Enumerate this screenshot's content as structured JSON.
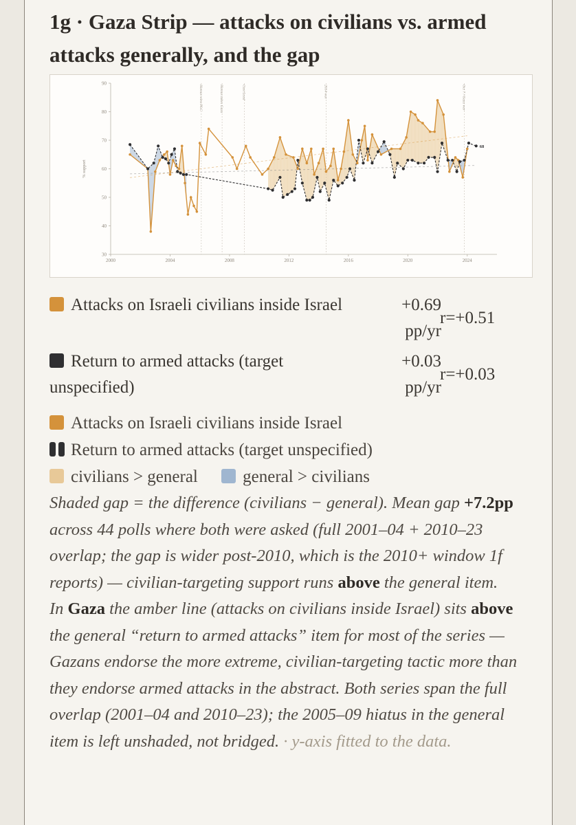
{
  "title": "1g · Gaza Strip — attacks on civilians vs. armed attacks generally, and the gap",
  "colors": {
    "civilians": "#d4923b",
    "general": "#2f2f31",
    "gap_civ_gt_gen": "#e8c998",
    "gap_gen_gt_civ": "#9fb6d0"
  },
  "stats": [
    {
      "label": "Attacks on Israeli civilians inside Israel",
      "slope": "+0.69",
      "unit": "pp/yr",
      "r": "r=+0.51",
      "color_key": "civilians"
    },
    {
      "label": "Return to armed attacks (target unspecified)",
      "slope": "+0.03",
      "unit": "pp/yr",
      "r": "r=+0.03",
      "color_key": "general"
    }
  ],
  "legend": {
    "series1": "Attacks on Israeli civilians inside Israel",
    "series2": "Return to armed attacks (target unspecified)",
    "gap_pos": "civilians > general",
    "gap_neg": "general > civilians"
  },
  "note": {
    "p1_a": "Shaded gap = the difference (civilians − general). Mean gap ",
    "p1_b": "+7.2pp",
    "p1_c": " across 44 polls where both were asked (full 2001–04 + 2010–23 overlap; the gap is wider post-2010, which is the 2010+ window 1f reports) — civilian-targeting support runs ",
    "p1_d": "above",
    "p1_e": " the general item.",
    "p2_a": "In ",
    "p2_b": "Gaza",
    "p2_c": " the amber line (attacks on civilians inside Israel) sits ",
    "p2_d": "above",
    "p2_e": " the general “return to armed attacks” item for most of the series — Gazans endorse the more extreme, civilian-targeting tactic more than they endorse armed attacks in the abstract. Both series span the full overlap (2001–04 and 2010–23); the 2005–09 hiatus in the general item is left unshaded, not bridged.",
    "p2_f": " · y-axis fitted to the data."
  },
  "chart_data": {
    "type": "line",
    "xlim": [
      2000,
      2026
    ],
    "ylim": [
      30,
      90
    ],
    "x_ticks": [
      "2000",
      "2004",
      "2008",
      "2012",
      "2016",
      "2020",
      "2024"
    ],
    "y_ticks": [
      "30",
      "40",
      "50",
      "60",
      "70",
      "80",
      "90"
    ],
    "ylabel": "% support",
    "end_label": "68",
    "annotations": [
      {
        "x": 2006.1,
        "label": "Hamas wins PLC"
      },
      {
        "x": 2007.5,
        "label": "Hamas takes Gaza"
      },
      {
        "x": 2009.0,
        "label": "Cast Lead"
      },
      {
        "x": 2014.5,
        "label": "2014 war"
      },
      {
        "x": 2023.8,
        "label": "Oct 7 / Gaza war"
      }
    ],
    "series": [
      {
        "name": "Attacks on Israeli civilians inside Israel",
        "x": [
          2001.3,
          2002.5,
          2002.7,
          2003.0,
          2003.3,
          2003.6,
          2003.8,
          2004.0,
          2004.2,
          2004.4,
          2004.6,
          2004.8,
          2005.0,
          2005.2,
          2005.4,
          2005.6,
          2005.8,
          2006.0,
          2006.4,
          2006.6,
          2008.2,
          2008.5,
          2009.1,
          2009.4,
          2010.2,
          2010.6,
          2011.0,
          2011.4,
          2011.8,
          2012.3,
          2012.6,
          2012.9,
          2013.2,
          2013.5,
          2013.7,
          2014.0,
          2014.3,
          2014.5,
          2014.8,
          2015.0,
          2015.3,
          2015.5,
          2015.7,
          2016.0,
          2016.3,
          2016.6,
          2016.9,
          2017.1,
          2017.3,
          2017.6,
          2018.2,
          2018.9,
          2019.5,
          2019.9,
          2020.2,
          2020.5,
          2020.7,
          2021.0,
          2021.5,
          2021.8,
          2022.0,
          2022.4,
          2022.8,
          2023.2,
          2023.4,
          2023.7,
          2024.0
        ],
        "values": [
          65,
          60,
          38,
          59,
          63,
          65,
          66,
          58,
          63,
          61,
          60,
          68,
          55,
          44,
          50,
          47,
          45,
          69,
          65,
          74,
          64,
          60,
          68,
          64,
          58,
          60,
          64,
          71,
          65,
          64,
          60,
          67,
          62,
          67,
          58,
          62,
          67,
          59,
          61,
          67,
          56,
          60,
          66,
          77,
          65,
          62,
          70,
          75,
          63,
          72,
          65,
          67,
          67,
          71,
          80,
          79,
          77,
          76,
          73,
          73,
          84,
          79,
          59,
          64,
          63,
          57,
          67
        ]
      },
      {
        "name": "Return to armed attacks (target unspecified)",
        "x": [
          2001.3,
          2002.5,
          2002.9,
          2003.2,
          2003.5,
          2003.7,
          2003.9,
          2004.1,
          2004.3,
          2004.5,
          2004.7,
          2004.9,
          2005.1,
          2010.6,
          2010.9,
          2011.4,
          2011.6,
          2011.9,
          2012.2,
          2012.4,
          2012.6,
          2012.9,
          2013.2,
          2013.4,
          2013.6,
          2013.9,
          2014.1,
          2014.4,
          2014.7,
          2015.0,
          2015.3,
          2015.6,
          2015.9,
          2016.1,
          2016.4,
          2016.7,
          2017.0,
          2017.3,
          2017.6,
          2018.0,
          2018.4,
          2018.8,
          2019.1,
          2019.3,
          2019.7,
          2020.0,
          2020.3,
          2020.7,
          2021.1,
          2021.4,
          2021.8,
          2022.0,
          2022.3,
          2022.7,
          2023.0,
          2023.3,
          2023.5,
          2023.8,
          2024.1,
          2024.6
        ],
        "values": [
          68.5,
          60,
          62,
          68,
          64,
          63.5,
          62,
          65,
          67,
          59,
          58.5,
          58,
          58,
          53,
          52.5,
          57,
          50,
          51,
          52,
          53,
          63,
          55,
          49,
          49,
          50,
          57,
          52,
          55,
          49,
          56,
          54,
          55,
          57,
          60,
          56,
          70,
          62,
          67,
          62,
          66,
          69.5,
          65,
          57,
          62,
          60,
          63,
          63,
          62,
          62,
          64,
          64,
          59,
          69,
          63,
          63,
          59,
          62.5,
          63,
          69,
          68
        ]
      }
    ]
  }
}
